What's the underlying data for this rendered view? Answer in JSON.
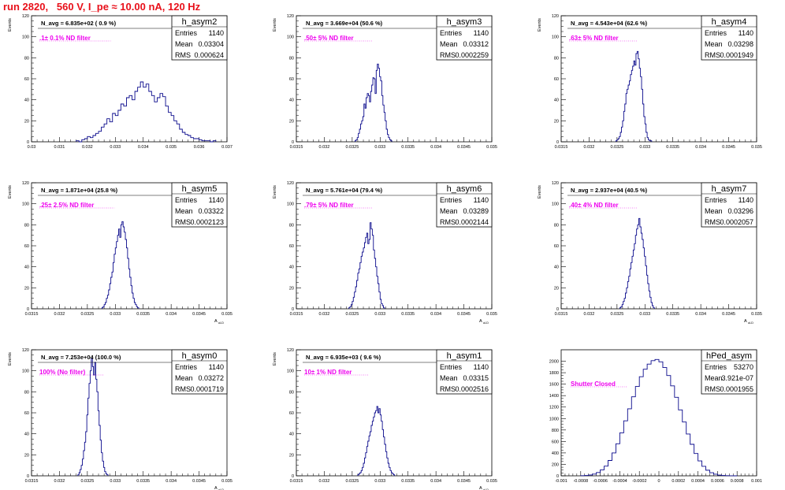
{
  "header": {
    "title": "run 2820,   560 V, I_pe ≈ 10.00 nA, 120 Hz"
  },
  "colors": {
    "header": "#e8101a",
    "note": "#ee00ee",
    "hist": "#0a0a8c",
    "axis": "#000000"
  },
  "chart_data": [
    {
      "type": "bar",
      "name": "h_asym2",
      "nav_text": "N_avg = 6.835e+02 ( 0.9 %)",
      "note": ".1± 0.1% ND filter",
      "stats": {
        "entries_label": "Entries",
        "entries": "1140",
        "mean_label": "Mean",
        "mean": "0.03304",
        "rms_label": "RMS",
        "rms": "0.000624"
      },
      "ylabel": "Events",
      "xlabel": "",
      "ylim": [
        0,
        120
      ],
      "xlim": [
        0.03,
        0.037
      ],
      "yticks": [
        "0",
        "20",
        "40",
        "60",
        "80",
        "100",
        "120"
      ],
      "xticks": [
        "0.03",
        "0.031",
        "0.032",
        "0.033",
        "0.034",
        "0.035",
        "0.036",
        "0.037"
      ],
      "bin_start": 0.0316,
      "bin_width": 0.0001,
      "values": [
        1,
        0,
        2,
        3,
        5,
        4,
        6,
        8,
        10,
        14,
        17,
        22,
        19,
        27,
        25,
        30,
        36,
        34,
        42,
        44,
        40,
        48,
        52,
        57,
        52,
        55,
        48,
        44,
        38,
        42,
        46,
        43,
        34,
        28,
        25,
        20,
        17,
        12,
        9,
        7,
        6,
        4,
        3,
        3,
        2,
        1,
        1,
        1,
        0,
        1
      ]
    },
    {
      "type": "bar",
      "name": "h_asym3",
      "nav_text": "N_avg = 3.669e+04 (50.6 %)",
      "note": ".50± 5% ND filter",
      "stats": {
        "entries_label": "Entries",
        "entries": "1140",
        "mean_label": "Mean",
        "mean": "0.03312",
        "rms_label": "RMS",
        "rms": "0.0002259"
      },
      "ylabel": "Events",
      "xlabel": "",
      "ylim": [
        0,
        120
      ],
      "xlim": [
        0.0315,
        0.035
      ],
      "yticks": [
        "0",
        "20",
        "40",
        "60",
        "80",
        "100",
        "120"
      ],
      "xticks": [
        "0.0315",
        "0.032",
        "0.0325",
        "0.033",
        "0.0335",
        "0.034",
        "0.0345",
        "0.035"
      ],
      "bin_start": 0.03255,
      "bin_width": 2e-05,
      "values": [
        1,
        2,
        4,
        8,
        12,
        17,
        20,
        24,
        36,
        32,
        42,
        46,
        44,
        38,
        48,
        54,
        61,
        60,
        46,
        68,
        74,
        70,
        62,
        58,
        44,
        35,
        28,
        20,
        12,
        7,
        4,
        2,
        1
      ]
    },
    {
      "type": "bar",
      "name": "h_asym4",
      "nav_text": "N_avg = 4.543e+04 (62.6 %)",
      "note": ".63± 5% ND filter",
      "stats": {
        "entries_label": "Entries",
        "entries": "1140",
        "mean_label": "Mean",
        "mean": "0.03298",
        "rms_label": "RMS",
        "rms": "0.0001949"
      },
      "ylabel": "Events",
      "xlabel": "",
      "ylim": [
        0,
        120
      ],
      "xlim": [
        0.0315,
        0.035
      ],
      "yticks": [
        "0",
        "20",
        "40",
        "60",
        "80",
        "100",
        "120"
      ],
      "xticks": [
        "0.0315",
        "0.032",
        "0.0325",
        "0.033",
        "0.0335",
        "0.034",
        "0.0345",
        "0.035"
      ],
      "bin_start": 0.03248,
      "bin_width": 2e-05,
      "values": [
        1,
        2,
        3,
        5,
        9,
        14,
        20,
        29,
        36,
        46,
        50,
        54,
        58,
        64,
        68,
        72,
        77,
        73,
        84,
        86,
        79,
        70,
        62,
        50,
        36,
        24,
        17,
        9,
        4,
        2,
        1,
        1
      ]
    },
    {
      "type": "bar",
      "name": "h_asym5",
      "nav_text": "N_avg = 1.871e+04 (25.8 %)",
      "note": ".25± 2.5% ND filter",
      "stats": {
        "entries_label": "Entries",
        "entries": "1140",
        "mean_label": "Mean",
        "mean": "0.03322",
        "rms_label": "RMS",
        "rms": "0.0002123"
      },
      "ylabel": "Events",
      "xlabel": "A_uLD",
      "ylim": [
        0,
        120
      ],
      "xlim": [
        0.0315,
        0.035
      ],
      "yticks": [
        "0",
        "20",
        "40",
        "60",
        "80",
        "100",
        "120"
      ],
      "xticks": [
        "0.0315",
        "0.032",
        "0.0325",
        "0.033",
        "0.0335",
        "0.034",
        "0.0345",
        "0.035"
      ],
      "bin_start": 0.03276,
      "bin_width": 2e-05,
      "values": [
        1,
        2,
        4,
        6,
        10,
        13,
        18,
        24,
        30,
        35,
        44,
        52,
        58,
        64,
        70,
        76,
        68,
        80,
        83,
        78,
        73,
        66,
        58,
        48,
        38,
        30,
        22,
        15,
        10,
        6,
        4,
        2,
        1
      ]
    },
    {
      "type": "bar",
      "name": "h_asym6",
      "nav_text": "N_avg = 5.761e+04 (79.4 %)",
      "note": ".79± 5% ND filter",
      "stats": {
        "entries_label": "Entries",
        "entries": "1140",
        "mean_label": "Mean",
        "mean": "0.03289",
        "rms_label": "RMS",
        "rms": "0.0002144"
      },
      "ylabel": "Events",
      "xlabel": "A_uLD",
      "ylim": [
        0,
        120
      ],
      "xlim": [
        0.0315,
        0.035
      ],
      "yticks": [
        "0",
        "20",
        "40",
        "60",
        "80",
        "100",
        "120"
      ],
      "xticks": [
        "0.0315",
        "0.032",
        "0.0325",
        "0.033",
        "0.0335",
        "0.034",
        "0.0345",
        "0.035"
      ],
      "bin_start": 0.03244,
      "bin_width": 2e-05,
      "values": [
        1,
        2,
        4,
        7,
        11,
        16,
        21,
        27,
        34,
        38,
        44,
        50,
        54,
        58,
        63,
        68,
        72,
        62,
        66,
        82,
        76,
        70,
        56,
        48,
        40,
        31,
        24,
        16,
        9,
        5,
        3,
        1
      ]
    },
    {
      "type": "bar",
      "name": "h_asym7",
      "nav_text": "N_avg = 2.937e+04 (40.5 %)",
      "note": ".40± 4% ND filter",
      "stats": {
        "entries_label": "Entries",
        "entries": "1140",
        "mean_label": "Mean",
        "mean": "0.03296",
        "rms_label": "RMS",
        "rms": "0.0002057"
      },
      "ylabel": "Events",
      "xlabel": "A_uLD",
      "ylim": [
        0,
        120
      ],
      "xlim": [
        0.0315,
        0.035
      ],
      "yticks": [
        "0",
        "20",
        "40",
        "60",
        "80",
        "100",
        "120"
      ],
      "xticks": [
        "0.0315",
        "0.032",
        "0.0325",
        "0.033",
        "0.0335",
        "0.034",
        "0.0345",
        "0.035"
      ],
      "bin_start": 0.03255,
      "bin_width": 2e-05,
      "values": [
        1,
        2,
        4,
        7,
        10,
        15,
        20,
        26,
        31,
        38,
        44,
        50,
        56,
        62,
        70,
        76,
        80,
        86,
        78,
        72,
        66,
        58,
        50,
        41,
        32,
        24,
        17,
        11,
        6,
        3,
        1
      ]
    },
    {
      "type": "bar",
      "name": "h_asym0",
      "nav_text": "N_avg = 7.253e+04 (100.0 %)",
      "note": "100% (No filter)",
      "stats": {
        "entries_label": "Entries",
        "entries": "1140",
        "mean_label": "Mean",
        "mean": "0.03272",
        "rms_label": "RMS",
        "rms": "0.0001719"
      },
      "ylabel": "Events",
      "xlabel": "A_uLD",
      "ylim": [
        0,
        120
      ],
      "xlim": [
        0.0315,
        0.035
      ],
      "yticks": [
        "0",
        "20",
        "40",
        "60",
        "80",
        "100",
        "120"
      ],
      "xticks": [
        "0.0315",
        "0.032",
        "0.0325",
        "0.033",
        "0.0335",
        "0.034",
        "0.0345",
        "0.035"
      ],
      "bin_start": 0.03233,
      "bin_width": 2e-05,
      "values": [
        1,
        3,
        6,
        10,
        16,
        24,
        32,
        42,
        58,
        74,
        88,
        100,
        112,
        104,
        96,
        108,
        92,
        80,
        62,
        48,
        34,
        22,
        14,
        8,
        4,
        2,
        1
      ]
    },
    {
      "type": "bar",
      "name": "h_asym1",
      "nav_text": "N_avg = 6.935e+03 ( 9.6 %)",
      "note": "10± 1% ND filter",
      "stats": {
        "entries_label": "Entries",
        "entries": "1140",
        "mean_label": "Mean",
        "mean": "0.03315",
        "rms_label": "RMS",
        "rms": "0.0002516"
      },
      "ylabel": "Events",
      "xlabel": "A_uLD",
      "ylim": [
        0,
        120
      ],
      "xlim": [
        0.0315,
        0.035
      ],
      "yticks": [
        "0",
        "20",
        "40",
        "60",
        "80",
        "100",
        "120"
      ],
      "xticks": [
        "0.0315",
        "0.032",
        "0.0325",
        "0.033",
        "0.0335",
        "0.034",
        "0.0345",
        "0.035"
      ],
      "bin_start": 0.0326,
      "bin_width": 2e-05,
      "values": [
        1,
        2,
        3,
        5,
        8,
        12,
        17,
        22,
        28,
        33,
        38,
        42,
        48,
        52,
        56,
        60,
        62,
        66,
        60,
        64,
        58,
        52,
        44,
        37,
        30,
        23,
        17,
        12,
        8,
        5,
        3,
        2,
        1
      ]
    },
    {
      "type": "bar",
      "name": "hPed_asym",
      "nav_text": "",
      "note": "Shutter Closed",
      "stats": {
        "entries_label": "Entries",
        "entries": "53270",
        "mean_label": "Mean",
        "mean": "3.921e-07",
        "rms_label": "RMS",
        "rms": "0.0001955"
      },
      "ylabel": "",
      "xlabel": "",
      "ylim": [
        0,
        2200
      ],
      "xlim": [
        -0.001,
        0.001
      ],
      "yticks": [
        "0",
        "200",
        "400",
        "600",
        "800",
        "1000",
        "1200",
        "1400",
        "1600",
        "1800",
        "2000"
      ],
      "xticks": [
        "-0.001",
        "-0.0008",
        "-0.0006",
        "-0.0004",
        "-0.0002",
        "0",
        "0.0002",
        "0.0004",
        "0.0006",
        "0.0008",
        "0.001"
      ],
      "bin_start": -0.0008,
      "bin_width": 4e-05,
      "values": [
        2,
        6,
        14,
        30,
        58,
        104,
        170,
        268,
        400,
        560,
        750,
        960,
        1170,
        1380,
        1560,
        1730,
        1860,
        1950,
        2010,
        2030,
        1990,
        1890,
        1750,
        1570,
        1370,
        1150,
        940,
        730,
        550,
        390,
        260,
        166,
        98,
        54,
        28,
        13,
        6,
        2,
        1,
        0
      ]
    }
  ]
}
